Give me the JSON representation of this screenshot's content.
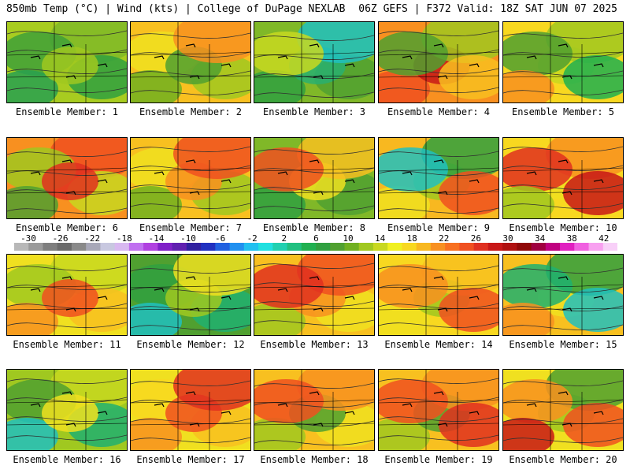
{
  "header": {
    "left": "850mb Temp (°C) | Wind (kts) | College of DuPage NEXLAB",
    "right": "06Z GEFS | F372 Valid: 18Z SAT JUN 07 2025"
  },
  "colorbar": {
    "tick_labels": [
      "-30",
      "-26",
      "-22",
      "-18",
      "-14",
      "-10",
      "-6",
      "-2",
      "2",
      "6",
      "10",
      "14",
      "18",
      "22",
      "26",
      "30",
      "34",
      "38",
      "42"
    ],
    "colors": [
      "#b8b8b8",
      "#9a9a9a",
      "#7e7e7e",
      "#6a6a6a",
      "#8a8a8a",
      "#a8a8b8",
      "#c8c8e0",
      "#d8b8f0",
      "#c070f0",
      "#b040e0",
      "#8020c8",
      "#6020b0",
      "#3020a0",
      "#2030c0",
      "#2060e0",
      "#2090f0",
      "#20c0f0",
      "#20e0e0",
      "#20d0b0",
      "#20c080",
      "#20b050",
      "#30a040",
      "#50a030",
      "#70b020",
      "#a0c820",
      "#c8d820",
      "#f0f020",
      "#f8d820",
      "#f8b820",
      "#f89020",
      "#f87020",
      "#f05020",
      "#e03020",
      "#c81818",
      "#b01010",
      "#900808",
      "#a00040",
      "#c00080",
      "#e020c0",
      "#f060e0",
      "#f8a0f0",
      "#f8d0f8"
    ]
  },
  "members": [
    {
      "label": "Ensemble Member: 1",
      "colors": [
        "#a8cc20",
        "#80b828",
        "#40a038",
        "#30a040",
        "#28a050",
        "#a0c820"
      ]
    },
    {
      "label": "Ensemble Member: 2",
      "colors": [
        "#f8c020",
        "#f0e020",
        "#a0c820",
        "#70b020",
        "#50a030",
        "#f89020"
      ]
    },
    {
      "label": "Ensemble Member: 3",
      "colors": [
        "#80b828",
        "#50a030",
        "#30a040",
        "#28b070",
        "#20c0c0",
        "#c8d820"
      ]
    },
    {
      "label": "Ensemble Member: 4",
      "colors": [
        "#f89020",
        "#f05020",
        "#c81818",
        "#a0c820",
        "#50a030",
        "#f8c020"
      ]
    },
    {
      "label": "Ensemble Member: 5",
      "colors": [
        "#f8d820",
        "#c8d820",
        "#a0c820",
        "#50a030",
        "#20b050",
        "#f89020"
      ]
    },
    {
      "label": "Ensemble Member: 6",
      "colors": [
        "#f89020",
        "#f05020",
        "#a0c820",
        "#c8d820",
        "#50a030",
        "#e03020"
      ]
    },
    {
      "label": "Ensemble Member: 7",
      "colors": [
        "#f8c020",
        "#f0e020",
        "#a0c820",
        "#70b020",
        "#f89020",
        "#f05020"
      ]
    },
    {
      "label": "Ensemble Member: 8",
      "colors": [
        "#80b828",
        "#50a030",
        "#30a040",
        "#f0e020",
        "#f8c020",
        "#f05020"
      ]
    },
    {
      "label": "Ensemble Member: 9",
      "colors": [
        "#f8b820",
        "#f0e020",
        "#a0c820",
        "#30a040",
        "#20c0c0",
        "#f05020"
      ]
    },
    {
      "label": "Ensemble Member: 10",
      "colors": [
        "#f8d820",
        "#f0e020",
        "#f89020",
        "#e03020",
        "#c81818",
        "#a0c820"
      ]
    },
    {
      "label": "Ensemble Member: 11",
      "colors": [
        "#f0e020",
        "#c8d820",
        "#a0c820",
        "#f8c020",
        "#f89020",
        "#f05020"
      ]
    },
    {
      "label": "Ensemble Member: 12",
      "colors": [
        "#50a030",
        "#30a040",
        "#20b070",
        "#20c0c0",
        "#a0c820",
        "#f0e020"
      ]
    },
    {
      "label": "Ensemble Member: 13",
      "colors": [
        "#f8c020",
        "#f0e020",
        "#a0c820",
        "#f89020",
        "#f05020",
        "#e03020"
      ]
    },
    {
      "label": "Ensemble Member: 14",
      "colors": [
        "#f8d820",
        "#f0e020",
        "#a0c820",
        "#f8c020",
        "#f89020",
        "#f05020"
      ]
    },
    {
      "label": "Ensemble Member: 15",
      "colors": [
        "#f8c020",
        "#f0e020",
        "#30a040",
        "#20b070",
        "#20c0c0",
        "#f89020"
      ]
    },
    {
      "label": "Ensemble Member: 16",
      "colors": [
        "#a0c820",
        "#c8d820",
        "#50a030",
        "#20b070",
        "#20c0c0",
        "#f0e020"
      ]
    },
    {
      "label": "Ensemble Member: 17",
      "colors": [
        "#f0e020",
        "#f8d820",
        "#f8c020",
        "#f89020",
        "#f05020",
        "#e03020"
      ]
    },
    {
      "label": "Ensemble Member: 18",
      "colors": [
        "#f8c020",
        "#f0e020",
        "#a0c820",
        "#50a030",
        "#f89020",
        "#f05020"
      ]
    },
    {
      "label": "Ensemble Member: 19",
      "colors": [
        "#f8c020",
        "#a0c820",
        "#50a030",
        "#f89020",
        "#f05020",
        "#e03020"
      ]
    },
    {
      "label": "Ensemble Member: 20",
      "colors": [
        "#f0e020",
        "#a0c820",
        "#50a030",
        "#f89020",
        "#f05020",
        "#c81818"
      ]
    }
  ]
}
